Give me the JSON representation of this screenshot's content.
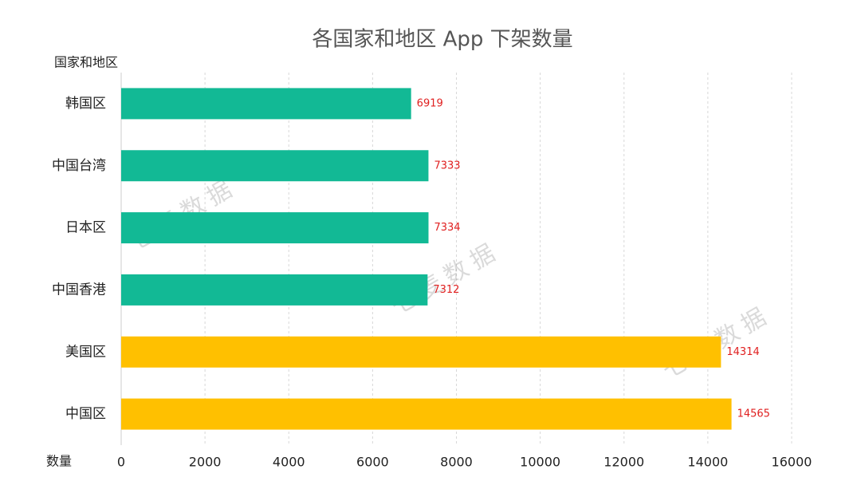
{
  "chart_data": {
    "type": "bar",
    "orientation": "horizontal",
    "title": "各国家和地区 App 下架数量",
    "y_label": "国家和地区",
    "x_label": "数量",
    "categories": [
      "韩国区",
      "中国台湾",
      "日本区",
      "中国香港",
      "美国区",
      "中国区"
    ],
    "values": [
      6919,
      7333,
      7334,
      7312,
      14314,
      14565
    ],
    "colors": [
      "#12b995",
      "#12b995",
      "#12b995",
      "#12b995",
      "#ffc000",
      "#ffc000"
    ],
    "value_label_color": "#e02020",
    "xlim": [
      0,
      16000
    ],
    "xticks": [
      0,
      2000,
      4000,
      6000,
      8000,
      10000,
      12000,
      14000,
      16000
    ],
    "grid": true,
    "watermark": "七麦数据"
  }
}
